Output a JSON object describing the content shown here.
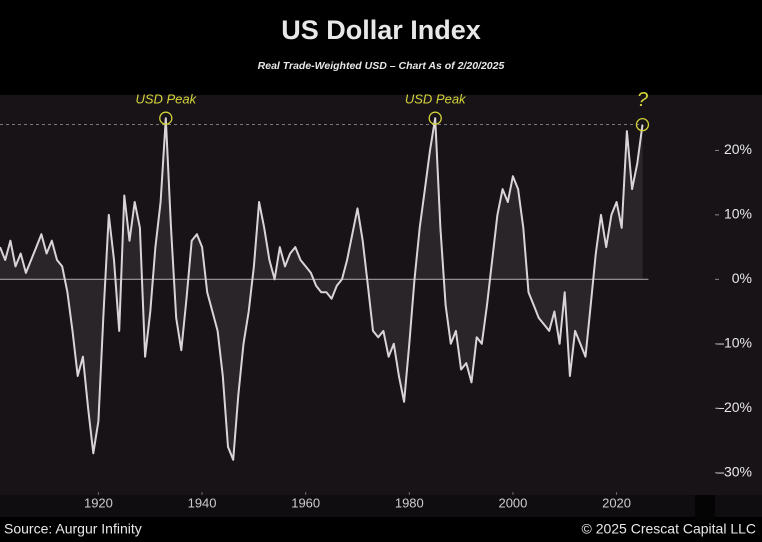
{
  "chart_data": {
    "type": "line",
    "title": "US Dollar Index",
    "subtitle": "Real Trade-Weighted USD – Chart As of 2/20/2025",
    "source": "Source: Aurgur Infinity",
    "copyright": "© 2025 Crescat Capital LLC",
    "x": [
      1901,
      1902,
      1903,
      1904,
      1905,
      1906,
      1907,
      1908,
      1909,
      1910,
      1911,
      1912,
      1913,
      1914,
      1915,
      1916,
      1917,
      1918,
      1919,
      1920,
      1921,
      1922,
      1923,
      1924,
      1925,
      1926,
      1927,
      1928,
      1929,
      1930,
      1931,
      1932,
      1933,
      1934,
      1935,
      1936,
      1937,
      1938,
      1939,
      1940,
      1941,
      1942,
      1943,
      1944,
      1945,
      1946,
      1947,
      1948,
      1949,
      1950,
      1951,
      1952,
      1953,
      1954,
      1955,
      1956,
      1957,
      1958,
      1959,
      1960,
      1961,
      1962,
      1963,
      1964,
      1965,
      1966,
      1967,
      1968,
      1969,
      1970,
      1971,
      1972,
      1973,
      1974,
      1975,
      1976,
      1977,
      1978,
      1979,
      1980,
      1981,
      1982,
      1983,
      1984,
      1985,
      1986,
      1987,
      1988,
      1989,
      1990,
      1991,
      1992,
      1993,
      1994,
      1995,
      1996,
      1997,
      1998,
      1999,
      2000,
      2001,
      2002,
      2003,
      2004,
      2005,
      2006,
      2007,
      2008,
      2009,
      2010,
      2011,
      2012,
      2013,
      2014,
      2015,
      2016,
      2017,
      2018,
      2019,
      2020,
      2021,
      2022,
      2023,
      2024,
      2025
    ],
    "series": [
      {
        "name": "Real Trade-Weighted USD",
        "color": "#d8d4d8",
        "values": [
          5,
          3,
          6,
          2,
          4,
          1,
          3,
          5,
          7,
          4,
          6,
          3,
          2,
          -2,
          -8,
          -15,
          -12,
          -20,
          -27,
          -22,
          -5,
          10,
          3,
          -8,
          13,
          6,
          12,
          8,
          -12,
          -5,
          5,
          12,
          25,
          8,
          -6,
          -11,
          -3,
          6,
          7,
          5,
          -2,
          -5,
          -8,
          -15,
          -26,
          -28,
          -18,
          -10,
          -5,
          2,
          12,
          8,
          3,
          0,
          5,
          2,
          4,
          5,
          3,
          2,
          1,
          -1,
          -2,
          -2,
          -3,
          -1,
          0,
          3,
          7,
          11,
          6,
          -1,
          -8,
          -9,
          -8,
          -12,
          -10,
          -15,
          -19,
          -10,
          0,
          8,
          14,
          20,
          25,
          8,
          -4,
          -10,
          -8,
          -14,
          -13,
          -16,
          -9,
          -10,
          -4,
          3,
          10,
          14,
          12,
          16,
          14,
          8,
          -2,
          -4,
          -6,
          -7,
          -8,
          -5,
          -10,
          -2,
          -15,
          -8,
          -10,
          -12,
          -4,
          4,
          10,
          5,
          10,
          12,
          8,
          23,
          14,
          18,
          24
        ]
      }
    ],
    "xlim": [
      1901,
      2039
    ],
    "ylim": [
      -33,
      28.6
    ],
    "xticks": [
      1920,
      1940,
      1960,
      1980,
      2000,
      2020
    ],
    "yticks": [
      {
        "value": 20,
        "label": "20%"
      },
      {
        "value": 10,
        "label": "10%"
      },
      {
        "value": 0,
        "label": "0%"
      },
      {
        "value": -10,
        "label": "–10%"
      },
      {
        "value": -20,
        "label": "–20%"
      },
      {
        "value": -30,
        "label": "–30%"
      }
    ],
    "reference_line": 24,
    "annotations": [
      {
        "text": "USD Peak",
        "x": 1933
      },
      {
        "text": "USD Peak",
        "x": 1985
      },
      {
        "text": "?",
        "x": 2025
      }
    ]
  }
}
